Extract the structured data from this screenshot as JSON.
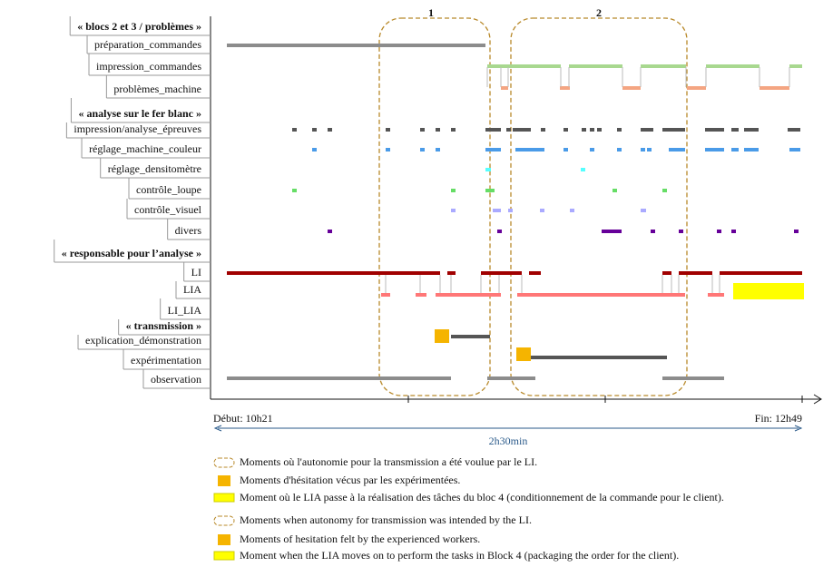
{
  "groups": [
    {
      "title": "« blocs 2 et 3 / problèmes »",
      "rows": [
        "préparation_commandes",
        "impression_commandes",
        "problèmes_machine"
      ]
    },
    {
      "title": "« analyse sur le fer blanc »",
      "rows": [
        "impression/analyse_épreuves",
        "réglage_machine_couleur",
        "réglage_densitomètre",
        "contrôle_loupe",
        "contrôle_visuel",
        "divers"
      ]
    },
    {
      "title": "« responsable pour l’analyse »",
      "rows": [
        "LI",
        "LIA",
        "LI_LIA"
      ]
    },
    {
      "title": "« transmission »",
      "rows": [
        "explication_démonstration",
        "expérimentation",
        "observation"
      ]
    }
  ],
  "zones": [
    "1",
    "2"
  ],
  "axis": {
    "start": "Début: 10h21",
    "end": "Fin: 12h49",
    "duration": "2h30min"
  },
  "legend": [
    "Moments où l'autonomie pour la transmission a été voulue par le LI.",
    "Moments d'hésitation vécus par les expérimentées.",
    "Moment où le LIA passe à la réalisation des tâches du bloc 4 (conditionnement de la commande pour le client).",
    "Moments when autonomy for transmission was intended by the LI.",
    "Moments of hesitation felt by the experienced workers.",
    "Moment when the LIA moves on to perform the tasks in Block 4 (packaging the order for the client)."
  ]
}
